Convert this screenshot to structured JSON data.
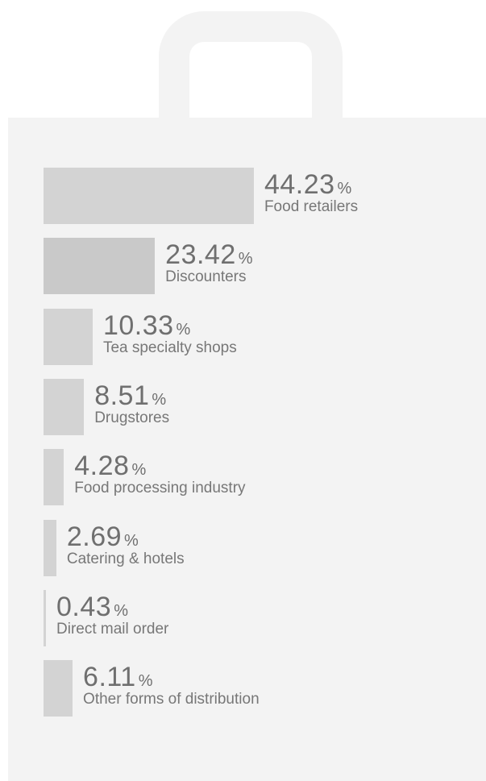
{
  "chart_data": {
    "type": "bar",
    "orientation": "horizontal",
    "unit": "%",
    "categories": [
      "Food retailers",
      "Discounters",
      "Tea specialty shops",
      "Drugstores",
      "Food processing industry",
      "Catering & hotels",
      "Direct mail order",
      "Other forms of distribution"
    ],
    "values": [
      44.23,
      23.42,
      10.33,
      8.51,
      4.28,
      2.69,
      0.43,
      6.11
    ],
    "value_labels": [
      "44.23",
      "23.42",
      "10.33",
      "8.51",
      "4.28",
      "2.69",
      "0.43",
      "6.11"
    ],
    "bar_color": "#d3d3d3",
    "highlight_color": "#c9c9c9",
    "background_color": "#f3f3f3",
    "title": "",
    "xlabel": "",
    "ylabel": "",
    "grid": false,
    "legend": "none"
  }
}
